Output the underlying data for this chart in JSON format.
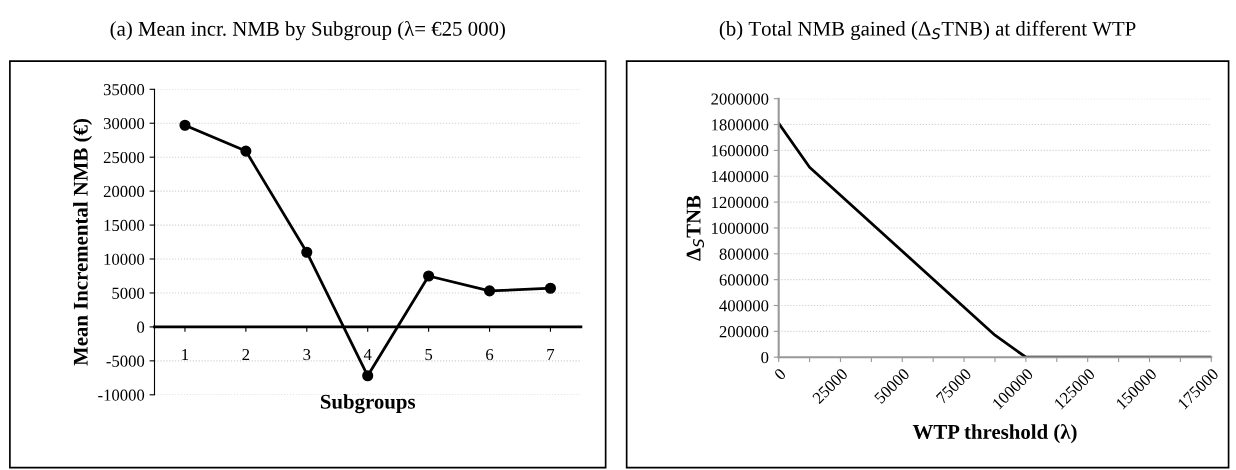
{
  "chart_data": [
    {
      "type": "line",
      "title": "(a) Mean incr. NMB by Subgroup (λ= €25 000)",
      "xlabel": "Subgroups",
      "ylabel": "Mean Incremental NMB (€)",
      "categories": [
        "1",
        "2",
        "3",
        "4",
        "5",
        "6",
        "7"
      ],
      "series": [
        {
          "color": "#000000",
          "values": [
            29700,
            25900,
            11000,
            -7200,
            7500,
            5300,
            5700
          ]
        }
      ],
      "ylim": [
        -10000,
        35000
      ],
      "yticks": [
        -10000,
        -5000,
        0,
        5000,
        10000,
        15000,
        20000,
        25000,
        30000,
        35000
      ],
      "grid": "y",
      "marker": "circle",
      "line_style": "solid",
      "legend": false
    },
    {
      "type": "line",
      "title": "(b) Total NMB gained (Δ$_{S}$TNB) at different WTP",
      "xlabel": "WTP threshold (λ)",
      "ylabel": "Δ$_{S}$TNB",
      "x": [
        0,
        12500,
        87500,
        100000,
        175000
      ],
      "series": [
        {
          "color": "#000000",
          "values": [
            1810000,
            1470000,
            170000,
            0,
            0
          ]
        }
      ],
      "xlim": [
        0,
        175000
      ],
      "xticks": [
        0,
        {
          "value": 12500,
          "label": null
        },
        25000,
        {
          "value": 37500,
          "label": null
        },
        50000,
        {
          "value": 62500,
          "label": null
        },
        75000,
        {
          "value": 87500,
          "label": null
        },
        100000,
        {
          "value": 112500,
          "label": null
        },
        125000,
        {
          "value": 137500,
          "label": null
        },
        150000,
        {
          "value": 162500,
          "label": null
        },
        175000
      ],
      "ylim": [
        0,
        2000000
      ],
      "yticks": [
        0,
        200000,
        400000,
        600000,
        800000,
        1000000,
        1200000,
        1400000,
        1600000,
        1800000,
        2000000
      ],
      "grid": "y",
      "marker": "none",
      "line_style": "solid",
      "legend": false
    }
  ]
}
